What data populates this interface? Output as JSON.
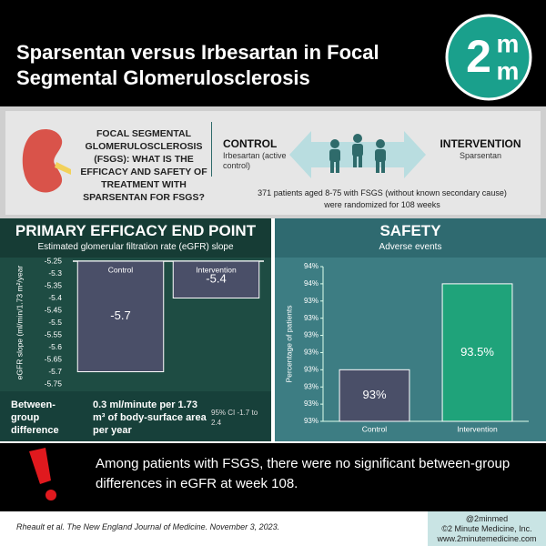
{
  "header": {
    "title": "Sparsentan versus Irbesartan in Focal Segmental Glomerulosclerosis",
    "logo": [
      "2",
      "m",
      "m"
    ]
  },
  "study": {
    "question": "FOCAL SEGMENTAL GLOMERULOSCLEROSIS (FSGS): WHAT IS THE EFFICACY AND SAFETY OF TREATMENT WITH SPARSENTAN FOR FSGS?",
    "control_label": "CONTROL",
    "control_detail": "Irbesartan (active control)",
    "intervention_label": "INTERVENTION",
    "intervention_detail": "Sparsentan",
    "population": "371 patients aged 8-75 with FSGS (without known secondary cause) were randomized for 108 weeks"
  },
  "chart_data": [
    {
      "type": "bar",
      "title": "PRIMARY EFFICACY END POINT",
      "subtitle": "Estimated glomerular filtration rate (eGFR) slope",
      "ylabel": "eGFR slope (ml/min/1.73 m²/year",
      "categories": [
        "Control",
        "Intervention"
      ],
      "values": [
        -5.7,
        -5.4
      ],
      "colors": [
        "#4a4f68",
        "#4a4f68"
      ],
      "ylim": [
        -5.75,
        -5.25
      ],
      "yticks": [
        -5.25,
        -5.3,
        -5.35,
        -5.4,
        -5.45,
        -5.5,
        -5.55,
        -5.6,
        -5.65,
        -5.7,
        -5.75
      ],
      "grid": false
    },
    {
      "type": "bar",
      "title": "SAFETY",
      "subtitle": "Adverse events",
      "ylabel": "Percentage of patients",
      "categories": [
        "Control",
        "Intervention"
      ],
      "values": [
        93,
        93.5
      ],
      "value_labels": [
        "93%",
        "93.5%"
      ],
      "colors": [
        "#4a4f68",
        "#1fa37a"
      ],
      "ylim": [
        92.7,
        93.6
      ],
      "yticks": [
        {
          "value": 92.7,
          "label": "93%"
        },
        {
          "value": 92.8,
          "label": "93%"
        },
        {
          "value": 92.9,
          "label": "93%"
        },
        {
          "value": 93.0,
          "label": "93%"
        },
        {
          "value": 93.1,
          "label": "93%"
        },
        {
          "value": 93.2,
          "label": "93%"
        },
        {
          "value": 93.3,
          "label": "93%"
        },
        {
          "value": 93.4,
          "label": "93%"
        },
        {
          "value": 93.5,
          "label": "94%"
        },
        {
          "value": 93.6,
          "label": "94%"
        }
      ],
      "grid": false
    }
  ],
  "efficacy_summary": {
    "label": "Between-group difference",
    "value": "0.3 ml/minute per 1.73 m³ of body-surface area per year",
    "ci": "95% CI -1.7 to 2.4"
  },
  "alert": "Among patients with FSGS, there were no significant between-group differences in eGFR at week 108.",
  "citation": "Rheault et al. The New England Journal of Medicine. November 3, 2023.",
  "credits": [
    "@2minmed",
    "©2 Minute Medicine, Inc.",
    "www.2minutemedicine.com"
  ]
}
